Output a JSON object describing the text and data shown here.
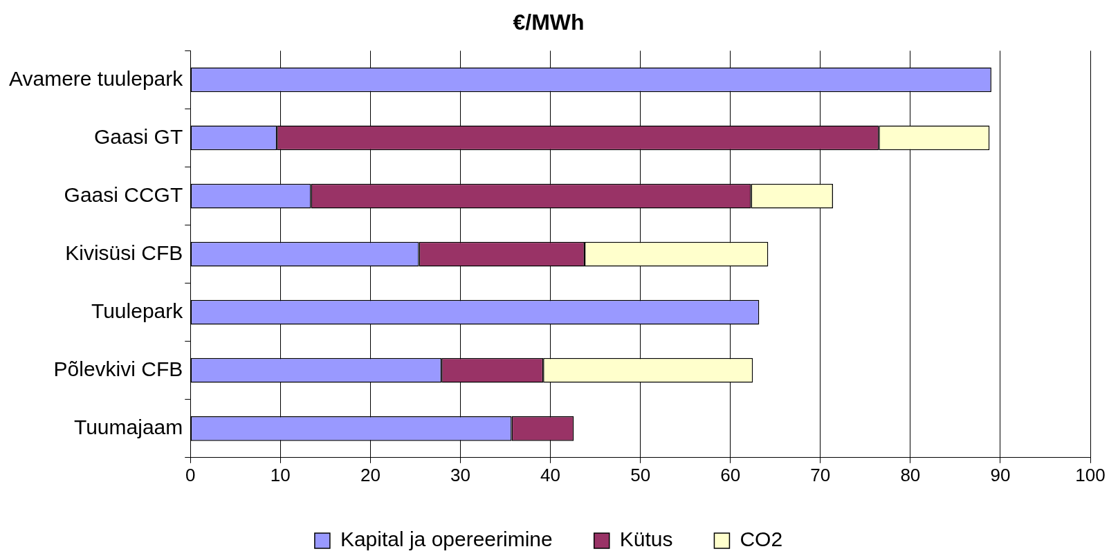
{
  "chart_data": {
    "type": "bar",
    "title": "€/MWh",
    "orientation": "horizontal",
    "stacked": true,
    "categories": [
      "Avamere tuulepark",
      "Gaasi GT",
      "Gaasi CCGT",
      "Kivisüsi CFB",
      "Tuulepark",
      "Põlevkivi CFB",
      "Tuumajaam"
    ],
    "series": [
      {
        "name": "Kapital ja opereerimine",
        "color": "#9999ff",
        "values": [
          89,
          9.6,
          13.4,
          25.4,
          63.2,
          27.9,
          35.7
        ]
      },
      {
        "name": "Kütus",
        "color": "#993366",
        "values": [
          null,
          66.9,
          48.9,
          18.4,
          null,
          11.3,
          6.9
        ]
      },
      {
        "name": "CO2",
        "color": "#ffffcc",
        "values": [
          null,
          12.3,
          9.1,
          20.4,
          null,
          23.3,
          null
        ]
      }
    ],
    "xlim": [
      0,
      100
    ],
    "xticks": [
      0,
      10,
      20,
      30,
      40,
      50,
      60,
      70,
      80,
      90,
      100
    ],
    "grid": "x",
    "legend": "bottom"
  }
}
